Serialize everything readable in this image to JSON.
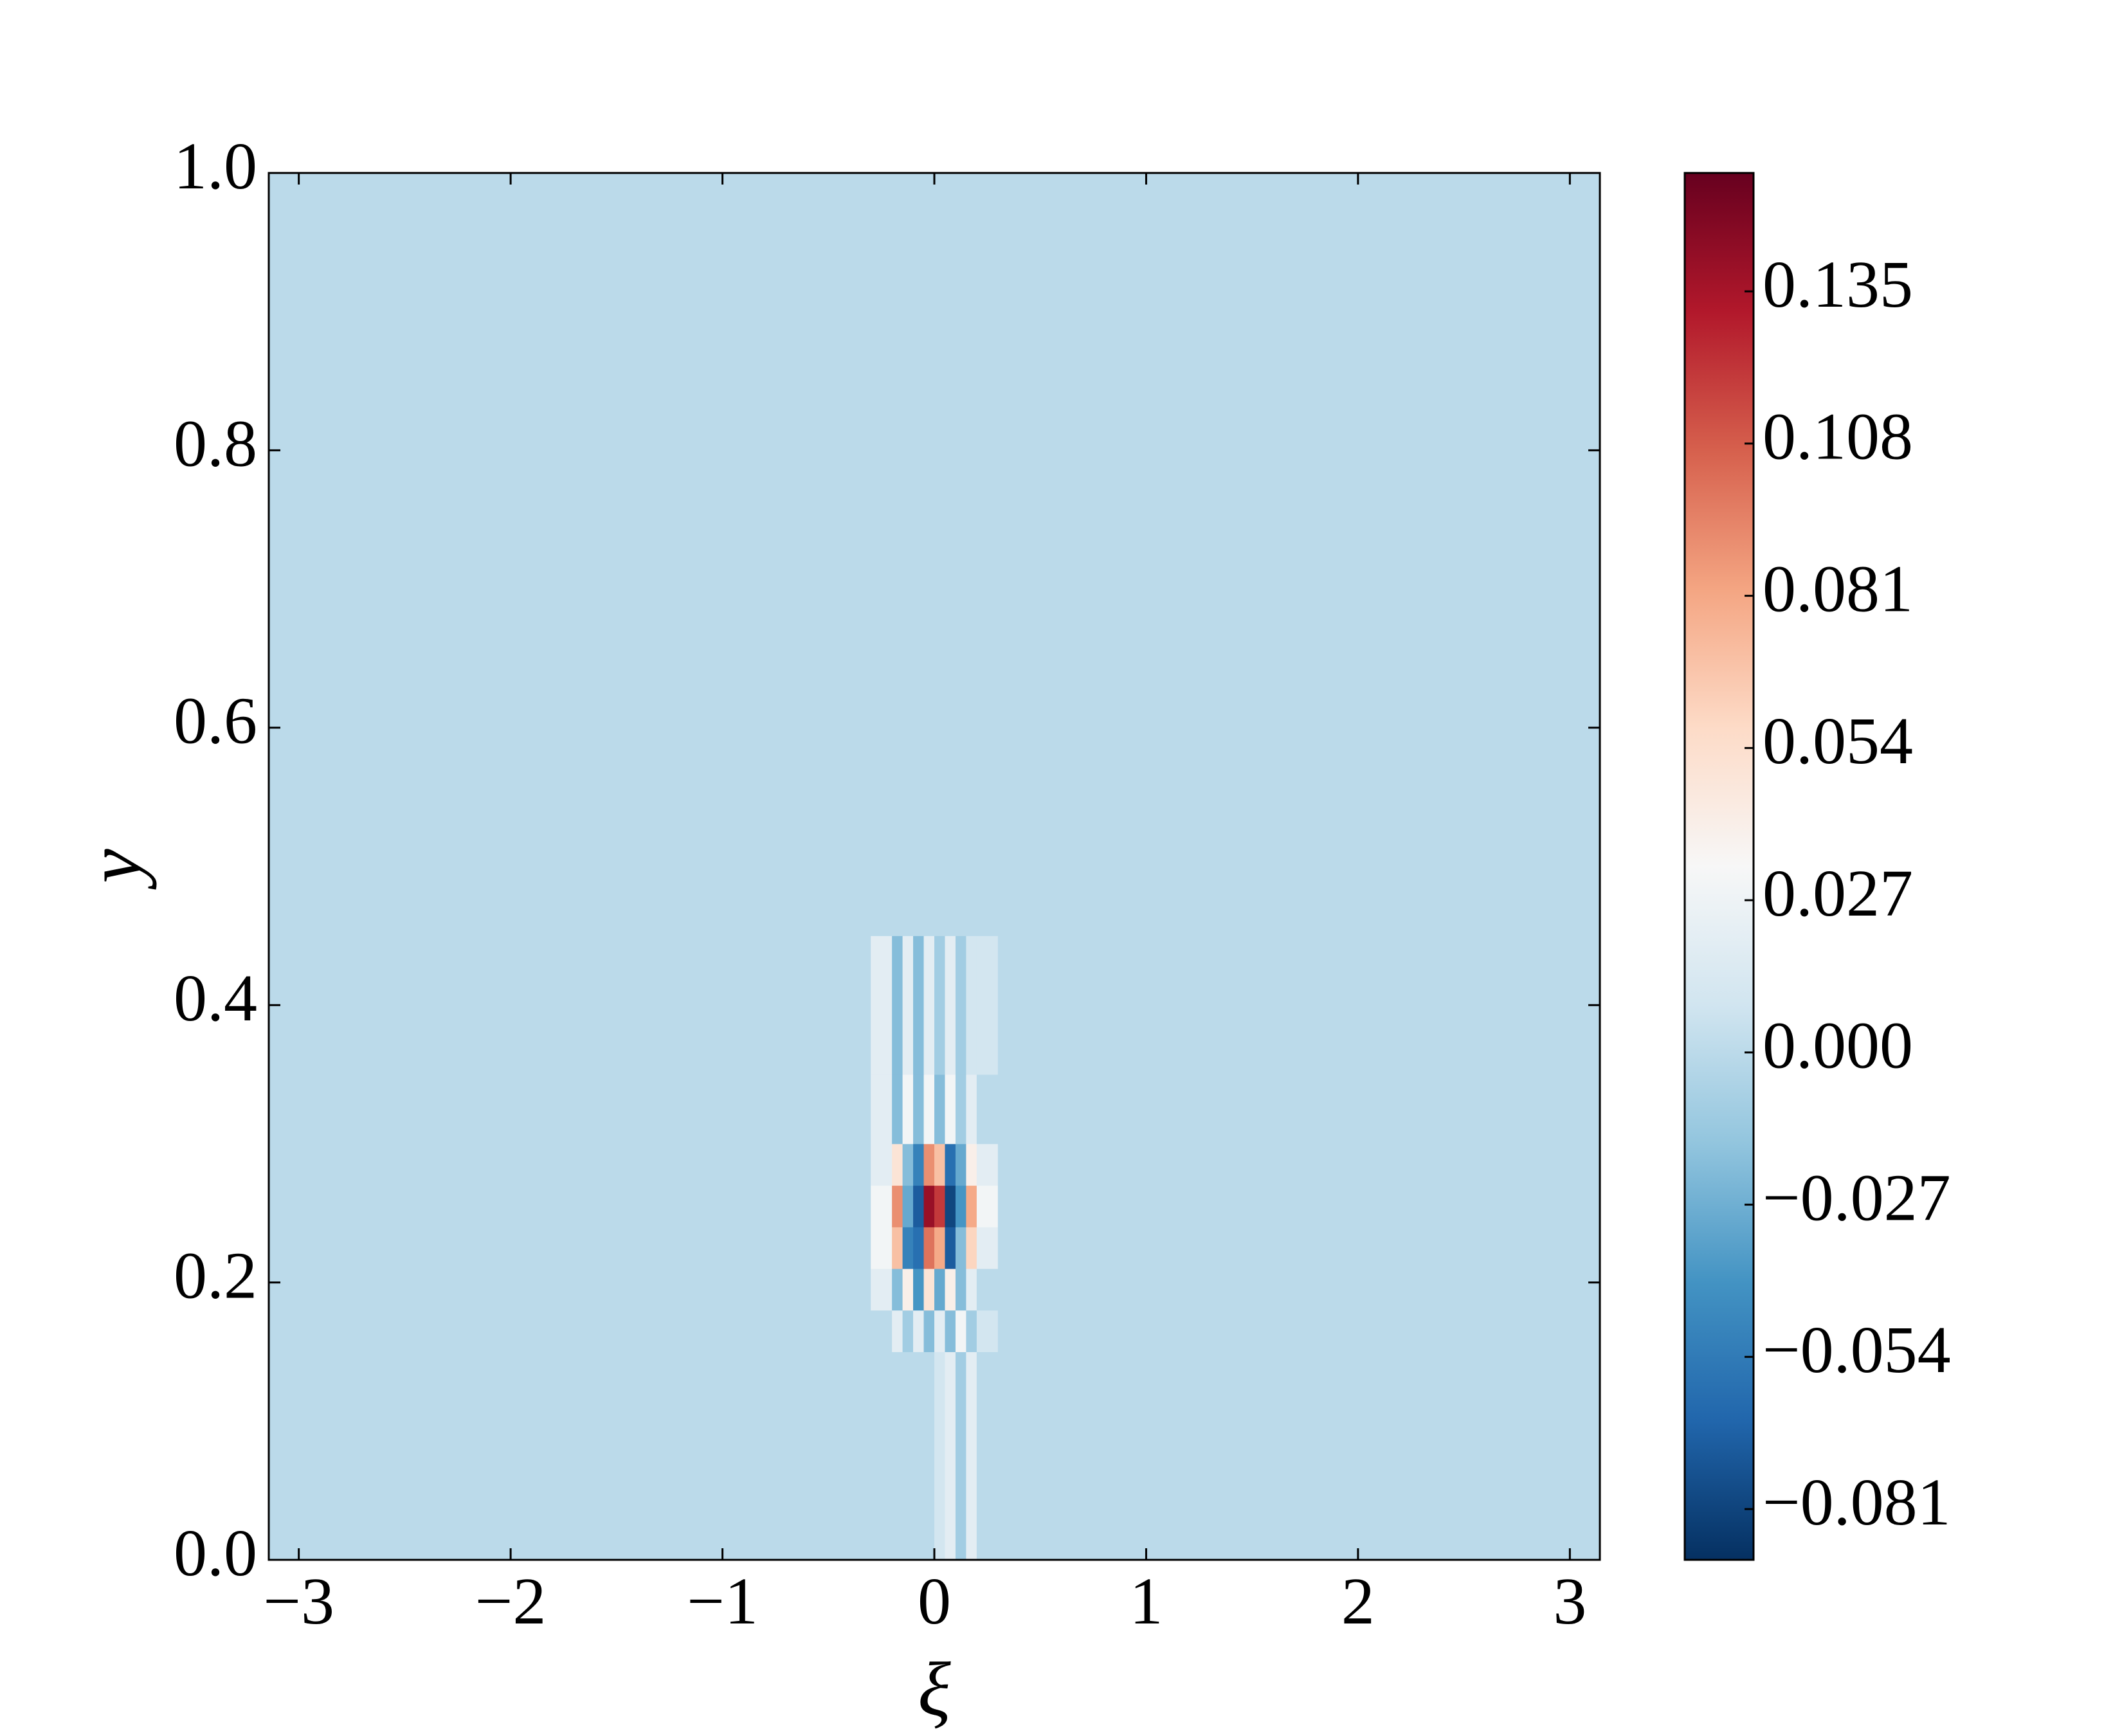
{
  "chart_data": {
    "type": "heatmap",
    "xlabel": "ξ",
    "ylabel": "y",
    "xlim": [
      -3.1416,
      3.1416
    ],
    "ylim": [
      0,
      1
    ],
    "xticks": [
      {
        "value": -3,
        "label": "−3"
      },
      {
        "value": -2,
        "label": "−2"
      },
      {
        "value": -1,
        "label": "−1"
      },
      0,
      1,
      2,
      3
    ],
    "yticks": [
      {
        "value": 0,
        "label": "0.0"
      },
      0.2,
      0.4,
      0.6,
      0.8,
      {
        "value": 1,
        "label": "1.0"
      }
    ],
    "clim": [
      -0.09,
      0.156
    ],
    "cticks": [
      {
        "value": -0.081,
        "label": "−0.081"
      },
      {
        "value": -0.054,
        "label": "−0.054"
      },
      {
        "value": -0.027,
        "label": "−0.027"
      },
      {
        "value": 0,
        "label": "0.000"
      },
      0.027,
      0.054,
      0.081,
      0.108,
      0.135
    ],
    "colormap": [
      "#053061",
      "#2166ac",
      "#4393c3",
      "#92c5de",
      "#d1e5f0",
      "#f7f7f7",
      "#fddbc7",
      "#f4a582",
      "#d6604d",
      "#b2182b",
      "#67001f"
    ],
    "x_edges": [
      -3.1416,
      -0.3,
      -0.2,
      -0.15,
      -0.1,
      -0.05,
      0,
      0.05,
      0.1,
      0.15,
      0.2,
      0.3,
      3.1416
    ],
    "y_edges": [
      0,
      0.15,
      0.18,
      0.21,
      0.24,
      0.27,
      0.3,
      0.35,
      0.45,
      1
    ],
    "z": [
      [
        0,
        0,
        0,
        0,
        0,
        0,
        0.01,
        0.02,
        -0.01,
        0.02,
        0,
        0
      ],
      [
        0,
        0,
        0.02,
        -0.01,
        0.02,
        -0.02,
        0.02,
        -0.02,
        0.03,
        -0.01,
        0.01,
        0
      ],
      [
        0,
        0.02,
        -0.02,
        0.04,
        -0.04,
        0.05,
        -0.03,
        0.04,
        -0.02,
        0.02,
        0,
        0
      ],
      [
        0,
        0.03,
        0.07,
        -0.05,
        -0.06,
        0.1,
        0.08,
        -0.07,
        -0.02,
        0.06,
        0.02,
        0
      ],
      [
        0,
        0.03,
        0.09,
        -0.03,
        -0.07,
        0.14,
        0.12,
        -0.08,
        -0.04,
        0.08,
        0.03,
        0
      ],
      [
        0,
        0.02,
        0.05,
        -0.02,
        -0.05,
        0.09,
        0.07,
        -0.06,
        -0.03,
        0.04,
        0.02,
        0
      ],
      [
        0,
        0.02,
        -0.02,
        0.03,
        -0.02,
        0.03,
        -0.02,
        0.03,
        -0.01,
        0.02,
        0,
        0
      ],
      [
        0,
        0.02,
        -0.02,
        0.02,
        -0.02,
        0.02,
        -0.01,
        0.02,
        -0.01,
        0.01,
        0.01,
        0
      ],
      [
        0,
        0,
        0,
        0,
        0,
        0,
        0,
        0,
        0,
        0,
        0,
        0
      ]
    ]
  }
}
